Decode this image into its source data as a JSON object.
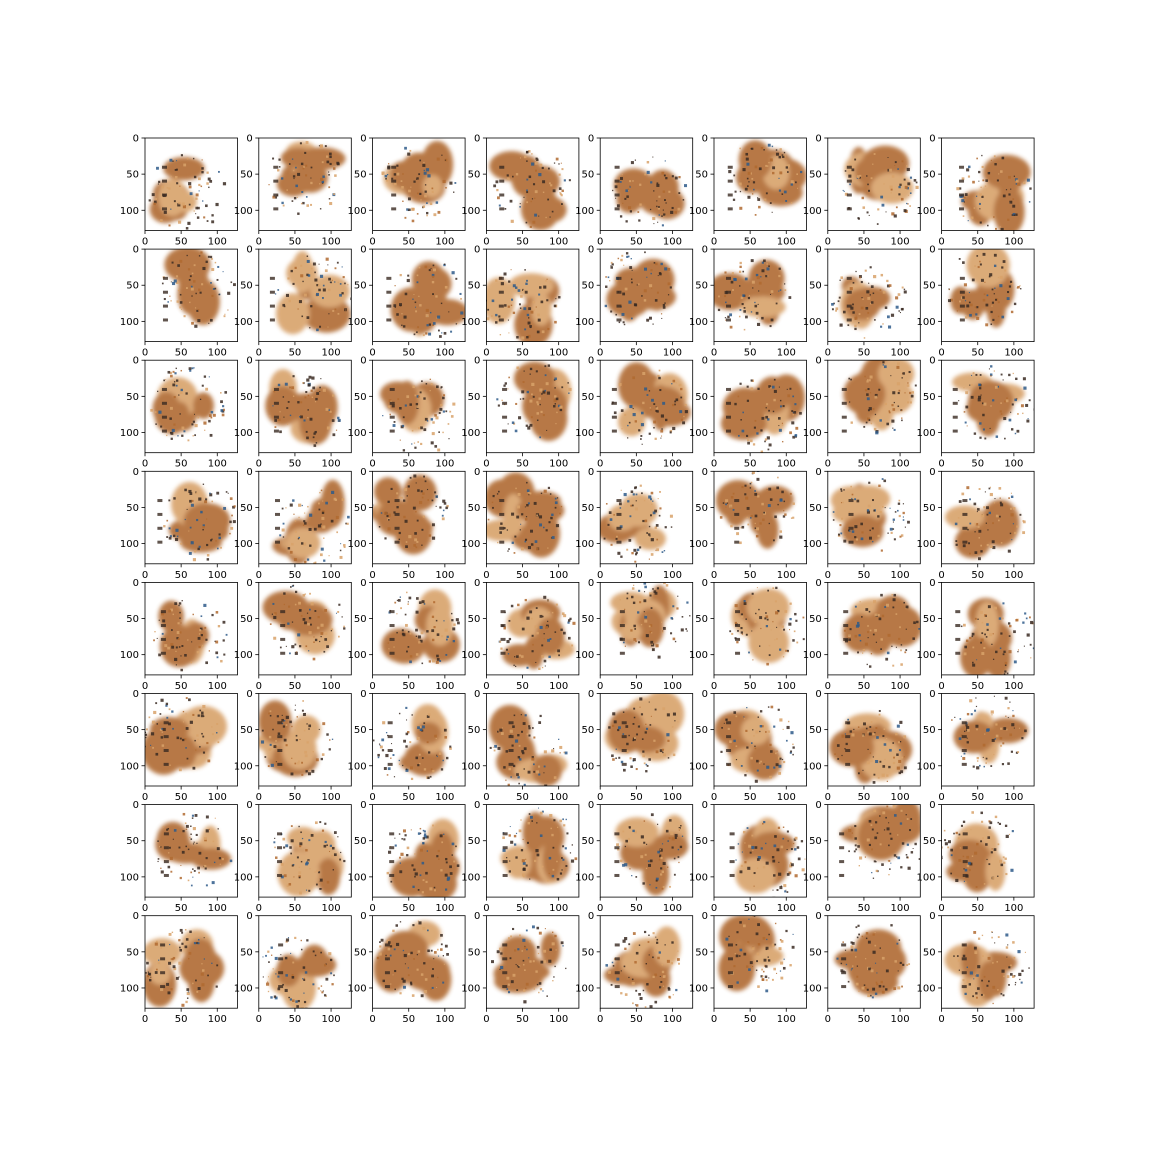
{
  "chart_data": {
    "type": "image-grid",
    "grid": {
      "rows": 8,
      "cols": 8
    },
    "panel": {
      "xlim": [
        0,
        128
      ],
      "ylim": [
        128,
        0
      ],
      "x_ticks": [
        0,
        50,
        100
      ],
      "y_ticks": [
        0,
        50,
        100
      ],
      "x_tick_labels": [
        "0",
        "50",
        "100"
      ],
      "y_tick_labels": [
        "0",
        "50",
        "100"
      ],
      "title": "",
      "xlabel": "",
      "ylabel": ""
    },
    "colors": {
      "blob_main": "#b06a30",
      "blob_light": "#d8a26a",
      "blob_dark": "#3a2a22",
      "speckle_blue": "#2e5a8a",
      "axes": "#000000",
      "background": "#ffffff"
    }
  }
}
